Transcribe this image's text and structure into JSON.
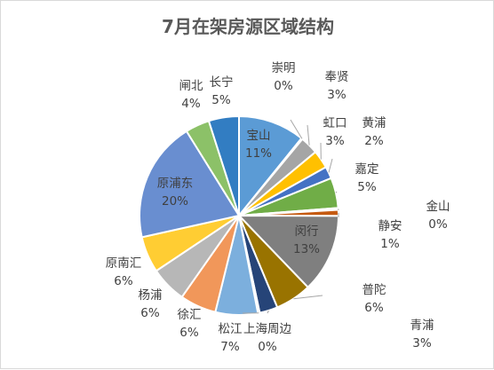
{
  "chart_data": {
    "type": "pie",
    "title": "7月在架房源区域结构",
    "legend": "none",
    "slices": [
      {
        "name": "宝山",
        "value": 11,
        "label": "11%",
        "color": "#5b9bd5"
      },
      {
        "name": "崇明",
        "value": 0.2,
        "label": "0%",
        "color": "#bfbfbf"
      },
      {
        "name": "奉贤",
        "value": 3,
        "label": "3%",
        "color": "#a5a5a5"
      },
      {
        "name": "虹口",
        "value": 3,
        "label": "3%",
        "color": "#ffc000"
      },
      {
        "name": "黄浦",
        "value": 2,
        "label": "2%",
        "color": "#4472c4"
      },
      {
        "name": "嘉定",
        "value": 5,
        "label": "5%",
        "color": "#70ad47"
      },
      {
        "name": "金山",
        "value": 0.3,
        "label": "0%",
        "color": "#255e91"
      },
      {
        "name": "静安",
        "value": 1,
        "label": "1%",
        "color": "#c55a11"
      },
      {
        "name": "闵行",
        "value": 13,
        "label": "13%",
        "color": "#7f7f7f"
      },
      {
        "name": "普陀",
        "value": 6,
        "label": "6%",
        "color": "#997300"
      },
      {
        "name": "青浦",
        "value": 3,
        "label": "3%",
        "color": "#264478"
      },
      {
        "name": "上海周边",
        "value": 0.3,
        "label": "0%",
        "color": "#43682b"
      },
      {
        "name": "松江",
        "value": 7,
        "label": "7%",
        "color": "#7cafdd"
      },
      {
        "name": "徐汇",
        "value": 6,
        "label": "6%",
        "color": "#f1975a"
      },
      {
        "name": "杨浦",
        "value": 6,
        "label": "6%",
        "color": "#b7b7b7"
      },
      {
        "name": "原南汇",
        "value": 6,
        "label": "6%",
        "color": "#ffcd33"
      },
      {
        "name": "原浦东",
        "value": 20,
        "label": "20%",
        "color": "#698ed0"
      },
      {
        "name": "闸北",
        "value": 4,
        "label": "4%",
        "color": "#8cc168"
      },
      {
        "name": "长宁",
        "value": 5,
        "label": "5%",
        "color": "#327dc2"
      }
    ]
  }
}
